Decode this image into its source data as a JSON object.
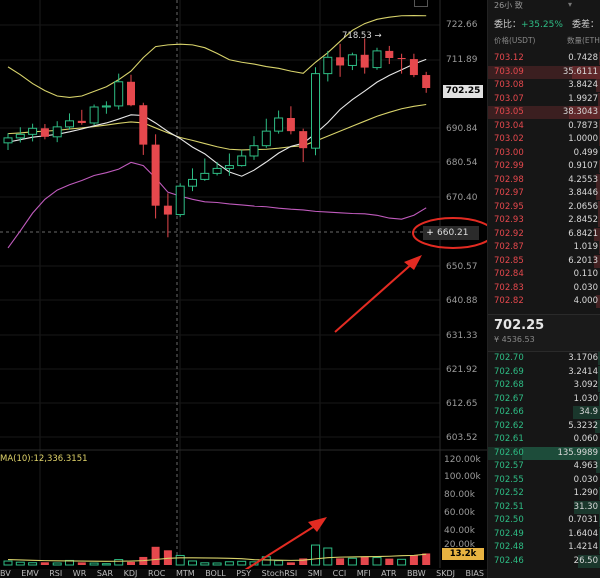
{
  "chart": {
    "top_info": "",
    "high_marker": "718.53",
    "current_price": "702.25",
    "crosshair_price": "660.21",
    "price_axis": [
      "722.66",
      "711.89",
      "702.25",
      "690.84",
      "680.54",
      "670.40",
      "660.21",
      "650.57",
      "640.88",
      "631.33",
      "621.92",
      "612.65",
      "603.52"
    ],
    "volume_axis": [
      "120.00k",
      "100.00k",
      "80.00k",
      "60.00k",
      "40.00k",
      "20.00k"
    ],
    "volume_tag": "13.2k",
    "ma_label": "MA(10):12,336.3151",
    "indicators": [
      "BV",
      "EMV",
      "RSI",
      "WR",
      "SAR",
      "KDJ",
      "ROC",
      "MTM",
      "BOLL",
      "PSY",
      "StochRSI",
      "SMI",
      "CCI",
      "MFI",
      "ATR",
      "BBW",
      "SKDJ",
      "BIAS"
    ],
    "colors": {
      "up": "#2ebd85",
      "down": "#e5484d",
      "boll_upper": "#d8d36b",
      "boll_mid": "#e8e8e8",
      "ma_purple": "#c05bbd",
      "annotation": "#e32b22"
    },
    "chart_data": {
      "type": "candlestick",
      "candles": [
        {
          "o": 686.8,
          "h": 689.5,
          "l": 684.8,
          "c": 688.2
        },
        {
          "o": 688.2,
          "h": 691.2,
          "l": 686.9,
          "c": 689.2
        },
        {
          "o": 689.2,
          "h": 692.2,
          "l": 687.2,
          "c": 690.9
        },
        {
          "o": 690.9,
          "h": 692.1,
          "l": 687.8,
          "c": 688.5
        },
        {
          "o": 688.5,
          "h": 692.9,
          "l": 687.0,
          "c": 691.3
        },
        {
          "o": 691.3,
          "h": 695.1,
          "l": 690.5,
          "c": 693.0
        },
        {
          "o": 693.0,
          "h": 696.1,
          "l": 691.9,
          "c": 692.4
        },
        {
          "o": 692.4,
          "h": 697.6,
          "l": 691.8,
          "c": 696.9
        },
        {
          "o": 696.9,
          "h": 698.5,
          "l": 695.0,
          "c": 697.2
        },
        {
          "o": 697.2,
          "h": 706.3,
          "l": 696.2,
          "c": 704.0
        },
        {
          "o": 704.0,
          "h": 706.0,
          "l": 697.1,
          "c": 697.4
        },
        {
          "o": 697.4,
          "h": 698.1,
          "l": 683.4,
          "c": 686.3
        },
        {
          "o": 686.3,
          "h": 689.2,
          "l": 665.5,
          "c": 669.1
        },
        {
          "o": 669.1,
          "h": 672.6,
          "l": 660.2,
          "c": 666.6
        },
        {
          "o": 666.6,
          "h": 675.4,
          "l": 665.9,
          "c": 674.6
        },
        {
          "o": 674.6,
          "h": 679.6,
          "l": 673.2,
          "c": 676.5
        },
        {
          "o": 676.5,
          "h": 682.4,
          "l": 676.1,
          "c": 678.2
        },
        {
          "o": 678.2,
          "h": 681.4,
          "l": 677.6,
          "c": 679.6
        },
        {
          "o": 679.6,
          "h": 683.8,
          "l": 677.5,
          "c": 680.4
        },
        {
          "o": 680.4,
          "h": 684.8,
          "l": 680.1,
          "c": 683.1
        },
        {
          "o": 683.1,
          "h": 688.7,
          "l": 682.0,
          "c": 686.0
        },
        {
          "o": 686.0,
          "h": 693.6,
          "l": 685.4,
          "c": 690.1
        },
        {
          "o": 690.1,
          "h": 695.9,
          "l": 689.4,
          "c": 693.8
        },
        {
          "o": 693.8,
          "h": 697.1,
          "l": 689.2,
          "c": 690.1
        },
        {
          "o": 690.1,
          "h": 690.8,
          "l": 681.4,
          "c": 685.3
        },
        {
          "o": 685.3,
          "h": 708.1,
          "l": 683.3,
          "c": 706.3
        },
        {
          "o": 706.3,
          "h": 712.7,
          "l": 704.1,
          "c": 710.9
        },
        {
          "o": 710.9,
          "h": 714.7,
          "l": 705.4,
          "c": 708.6
        },
        {
          "o": 708.6,
          "h": 712.2,
          "l": 707.3,
          "c": 711.6
        },
        {
          "o": 711.6,
          "h": 716.2,
          "l": 706.3,
          "c": 708.0
        },
        {
          "o": 708.0,
          "h": 713.6,
          "l": 707.4,
          "c": 712.7
        },
        {
          "o": 712.7,
          "h": 714.1,
          "l": 709.0,
          "c": 710.7
        },
        {
          "o": 710.7,
          "h": 711.9,
          "l": 706.3,
          "c": 710.4
        },
        {
          "o": 710.4,
          "h": 711.9,
          "l": 705.3,
          "c": 705.9
        },
        {
          "o": 705.9,
          "h": 706.8,
          "l": 700.9,
          "c": 702.25
        }
      ],
      "volume": [
        {
          "v": 4500,
          "up": true
        },
        {
          "v": 3200,
          "up": true
        },
        {
          "v": 2600,
          "up": true
        },
        {
          "v": 3100,
          "up": false
        },
        {
          "v": 2300,
          "up": true
        },
        {
          "v": 5200,
          "up": true
        },
        {
          "v": 3000,
          "up": false
        },
        {
          "v": 2200,
          "up": true
        },
        {
          "v": 1500,
          "up": true
        },
        {
          "v": 6200,
          "up": true
        },
        {
          "v": 3600,
          "up": false
        },
        {
          "v": 9200,
          "up": false
        },
        {
          "v": 20800,
          "up": false
        },
        {
          "v": 16800,
          "up": false
        },
        {
          "v": 10900,
          "up": true
        },
        {
          "v": 4600,
          "up": true
        },
        {
          "v": 2500,
          "up": true
        },
        {
          "v": 2300,
          "up": true
        },
        {
          "v": 3700,
          "up": true
        },
        {
          "v": 4200,
          "up": true
        },
        {
          "v": 3600,
          "up": true
        },
        {
          "v": 9400,
          "up": true
        },
        {
          "v": 5000,
          "up": true
        },
        {
          "v": 3000,
          "up": false
        },
        {
          "v": 7500,
          "up": false
        },
        {
          "v": 22800,
          "up": true
        },
        {
          "v": 19400,
          "up": true
        },
        {
          "v": 7600,
          "up": false
        },
        {
          "v": 7700,
          "up": true
        },
        {
          "v": 9800,
          "up": false
        },
        {
          "v": 8500,
          "up": true
        },
        {
          "v": 7300,
          "up": false
        },
        {
          "v": 6500,
          "up": true
        },
        {
          "v": 11200,
          "up": false
        },
        {
          "v": 13200,
          "up": false
        }
      ],
      "boll_upper": [
        708.2,
        706.0,
        703.5,
        701.5,
        700.0,
        699.6,
        700.0,
        701.3,
        702.6,
        704.6,
        707.0,
        710.8,
        713.9,
        714.4,
        714.6,
        714.4,
        713.6,
        712.0,
        710.2,
        709.5,
        709.0,
        708.3,
        707.8,
        707.0,
        706.4,
        709.5,
        712.2,
        715.4,
        718.5,
        720.4,
        721.6,
        722.2,
        722.6,
        722.66,
        722.6
      ],
      "boll_mid": [
        689.4,
        689.6,
        689.9,
        690.1,
        690.3,
        690.7,
        691.0,
        691.4,
        691.8,
        692.3,
        692.7,
        692.4,
        691.0,
        689.6,
        688.3,
        687.5,
        686.6,
        685.7,
        685.0,
        684.8,
        684.9,
        685.0,
        685.3,
        685.7,
        686.0,
        687.3,
        688.7,
        690.1,
        691.5,
        692.9,
        694.3,
        695.4,
        696.4,
        697.1,
        697.6
      ],
      "ma_short": [
        687.0,
        687.7,
        688.4,
        688.8,
        689.2,
        689.9,
        690.7,
        691.6,
        692.4,
        693.5,
        694.7,
        694.5,
        692.4,
        690.0,
        688.0,
        685.6,
        683.7,
        681.0,
        678.6,
        677.4,
        679.1,
        681.4,
        683.9,
        685.8,
        686.7,
        689.4,
        692.5,
        696.2,
        699.0,
        701.4,
        703.9,
        705.8,
        707.4,
        709.0,
        710.3
      ],
      "ma_purple": [
        657.2,
        662.0,
        667.0,
        670.9,
        673.5,
        675.0,
        676.2,
        677.6,
        678.4,
        679.4,
        681.3,
        680.4,
        676.9,
        672.9,
        671.8,
        670.9,
        670.2,
        670.0,
        669.6,
        669.3,
        669.0,
        668.8,
        668.4,
        668.1,
        667.9,
        667.5,
        667.3,
        667.1,
        666.9,
        666.8,
        666.4,
        665.6,
        665.3,
        666.4,
        668.5
      ],
      "volume_ma": [
        6200,
        5800,
        5400,
        5000,
        4800,
        4600,
        4500,
        4400,
        4200,
        4300,
        4500,
        5000,
        6300,
        7600,
        8200,
        8200,
        8100,
        7900,
        7600,
        7200,
        6100,
        5800,
        5500,
        5300,
        5500,
        7000,
        8400,
        9000,
        9200,
        9500,
        9600,
        10000,
        10600,
        11000,
        12336
      ]
    }
  },
  "book": {
    "interval_label": "26小 致",
    "ratio_label": "委比：",
    "ratio_value": "+35.25%",
    "ratio_label2": "委差：",
    "price_header": "价格(USDT)",
    "qty_header": "数量(ETH",
    "asks": [
      {
        "price": "703.12",
        "qty": "0.7428",
        "depth": 0.02,
        "hl": false
      },
      {
        "price": "703.09",
        "qty": "35.6111",
        "depth": 0.26,
        "hl": true
      },
      {
        "price": "703.08",
        "qty": "3.8424",
        "depth": 0.04,
        "hl": false
      },
      {
        "price": "703.07",
        "qty": "1.9927",
        "depth": 0.03,
        "hl": false
      },
      {
        "price": "703.05",
        "qty": "38.3043",
        "depth": 0.28,
        "hl": true
      },
      {
        "price": "703.04",
        "qty": "0.7873",
        "depth": 0.02,
        "hl": false
      },
      {
        "price": "703.02",
        "qty": "1.0000",
        "depth": 0.02,
        "hl": false
      },
      {
        "price": "703.00",
        "qty": "0.499",
        "depth": 0.01,
        "hl": false
      },
      {
        "price": "702.99",
        "qty": "0.9107",
        "depth": 0.02,
        "hl": false
      },
      {
        "price": "702.98",
        "qty": "4.2553",
        "depth": 0.04,
        "hl": false
      },
      {
        "price": "702.97",
        "qty": "3.8446",
        "depth": 0.04,
        "hl": false
      },
      {
        "price": "702.95",
        "qty": "2.0656",
        "depth": 0.03,
        "hl": false
      },
      {
        "price": "702.93",
        "qty": "2.8452",
        "depth": 0.03,
        "hl": false
      },
      {
        "price": "702.92",
        "qty": "6.8421",
        "depth": 0.06,
        "hl": false
      },
      {
        "price": "702.87",
        "qty": "1.019",
        "depth": 0.02,
        "hl": false
      },
      {
        "price": "702.85",
        "qty": "6.2013",
        "depth": 0.06,
        "hl": false
      },
      {
        "price": "702.84",
        "qty": "0.110",
        "depth": 0.01,
        "hl": false
      },
      {
        "price": "702.83",
        "qty": "0.030",
        "depth": 0.01,
        "hl": false
      },
      {
        "price": "702.82",
        "qty": "4.000",
        "depth": 0.04,
        "hl": false
      }
    ],
    "last_price": "702.25",
    "last_price_cny": "¥ 4536.53",
    "bids": [
      {
        "price": "702.70",
        "qty": "3.1706",
        "depth": 0.03,
        "hl": false
      },
      {
        "price": "702.69",
        "qty": "3.2414",
        "depth": 0.03,
        "hl": false
      },
      {
        "price": "702.68",
        "qty": "3.092",
        "depth": 0.03,
        "hl": false
      },
      {
        "price": "702.67",
        "qty": "1.030",
        "depth": 0.02,
        "hl": false
      },
      {
        "price": "702.66",
        "qty": "34.9",
        "depth": 0.25,
        "hl": false
      },
      {
        "price": "702.62",
        "qty": "5.3232",
        "depth": 0.05,
        "hl": false
      },
      {
        "price": "702.61",
        "qty": "0.060",
        "depth": 0.01,
        "hl": false
      },
      {
        "price": "702.60",
        "qty": "135.9989",
        "depth": 0.7,
        "hl": true
      },
      {
        "price": "702.57",
        "qty": "4.963",
        "depth": 0.04,
        "hl": false
      },
      {
        "price": "702.55",
        "qty": "0.030",
        "depth": 0.01,
        "hl": false
      },
      {
        "price": "702.52",
        "qty": "1.290",
        "depth": 0.02,
        "hl": false
      },
      {
        "price": "702.51",
        "qty": "31.30",
        "depth": 0.24,
        "hl": false
      },
      {
        "price": "702.50",
        "qty": "0.7031",
        "depth": 0.02,
        "hl": false
      },
      {
        "price": "702.49",
        "qty": "1.6404",
        "depth": 0.02,
        "hl": false
      },
      {
        "price": "702.48",
        "qty": "1.4214",
        "depth": 0.02,
        "hl": false
      },
      {
        "price": "702.46",
        "qty": "26.50",
        "depth": 0.2,
        "hl": false
      }
    ]
  }
}
